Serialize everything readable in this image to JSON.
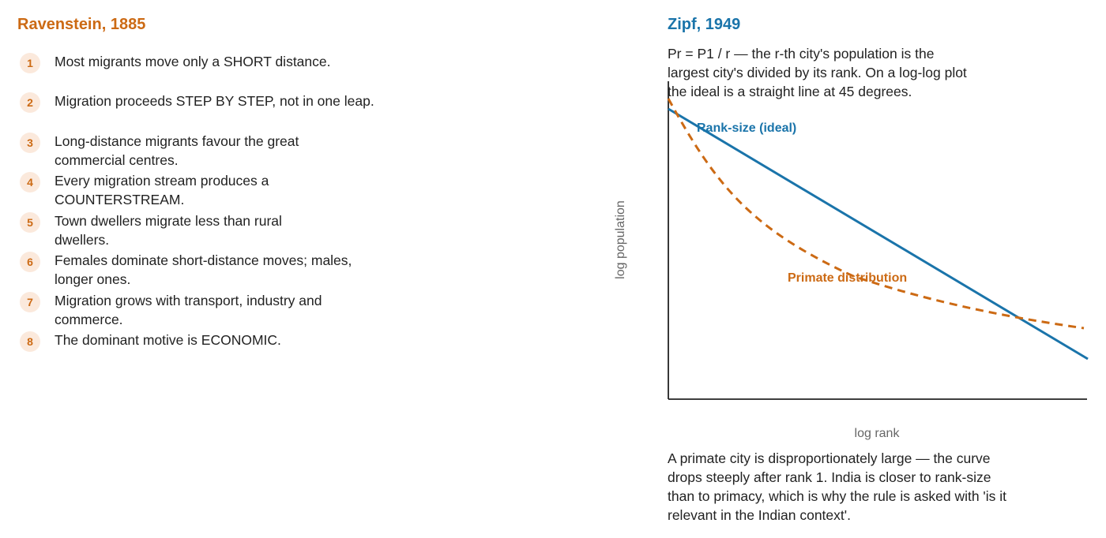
{
  "left": {
    "title": "Ravenstein, 1885",
    "laws": [
      {
        "n": "1",
        "text": "Most migrants move only a SHORT distance."
      },
      {
        "n": "2",
        "text": "Migration proceeds STEP BY STEP, not in one leap."
      },
      {
        "n": "3",
        "text": "Long-distance migrants favour the great commercial centres."
      },
      {
        "n": "4",
        "text": "Every migration stream produces a COUNTERSTREAM."
      },
      {
        "n": "5",
        "text": "Town dwellers migrate less than rural dwellers."
      },
      {
        "n": "6",
        "text": "Females dominate short-distance moves; males, longer ones."
      },
      {
        "n": "7",
        "text": "Migration grows with transport, industry and commerce."
      },
      {
        "n": "8",
        "text": "The dominant motive is ECONOMIC."
      }
    ]
  },
  "right": {
    "title": "Zipf, 1949",
    "formula": "Pr = P1 / r — the r-th city's population is the largest city's divided by its rank. On a log-log plot the ideal is a straight line at 45 degrees.",
    "note": "A primate city is disproportionately large — the curve drops steeply after rank 1. India is closer to rank-size than to primacy, which is why the rule is asked with 'is it relevant in the Indian context'."
  },
  "chart_data": {
    "type": "line",
    "title": "",
    "xlabel": "log rank",
    "ylabel": "log population",
    "grid": false,
    "series": [
      {
        "name": "Rank-size (ideal)",
        "color": "#1a74aa",
        "style": "solid"
      },
      {
        "name": "Primate distribution",
        "color": "#cc6a14",
        "style": "dashed"
      }
    ]
  },
  "colors": {
    "accent_orange": "#cc6a14",
    "accent_blue": "#1a74aa",
    "badge_bg": "#fbe9dc"
  }
}
